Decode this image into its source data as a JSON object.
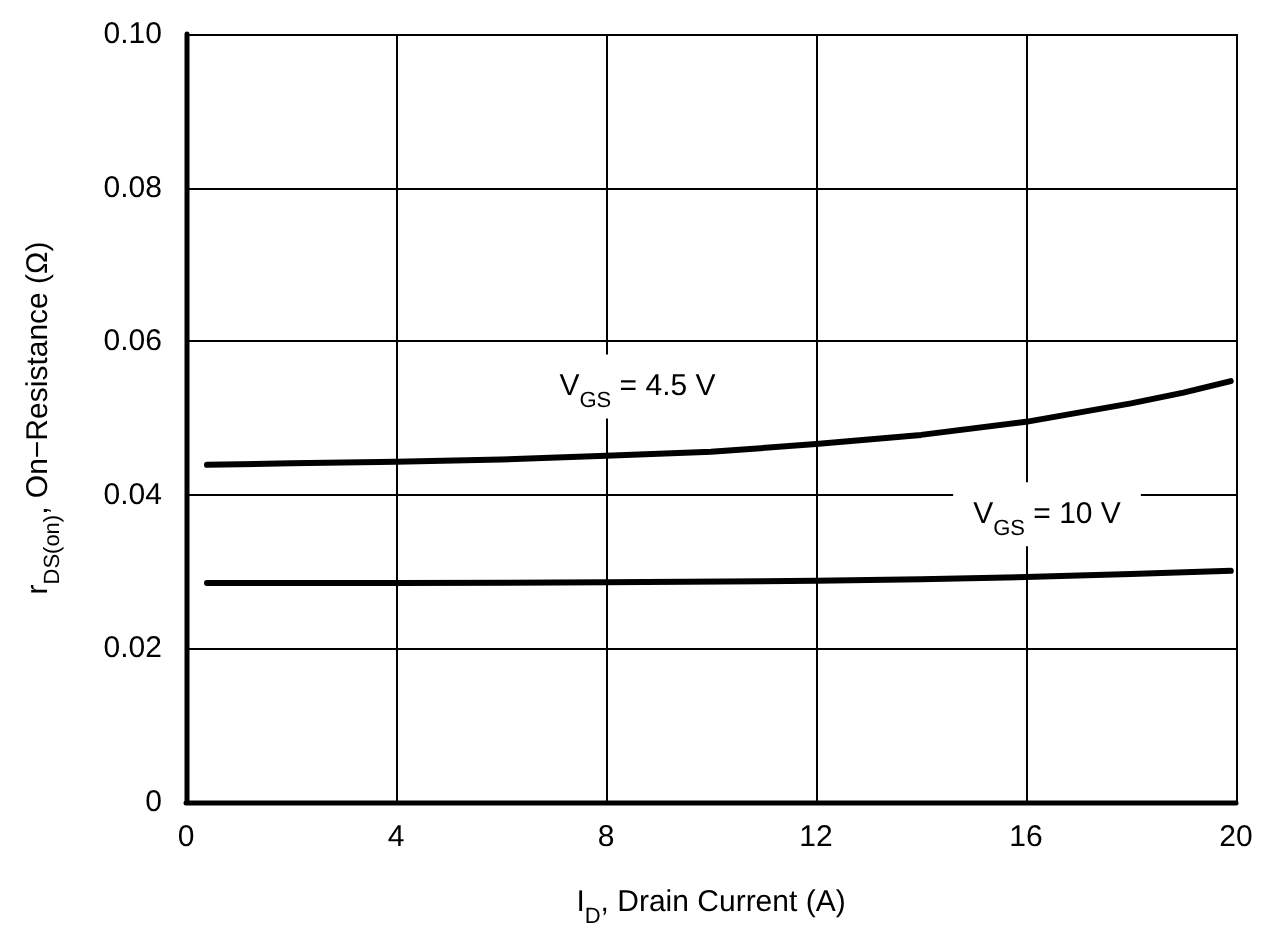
{
  "chart_data": {
    "type": "line",
    "xlabel": "I$_{D}$, Drain Current (A)",
    "ylabel": "r$_{DS(on)}$, On−Resistance (Ω)",
    "xlim": [
      0,
      20
    ],
    "xticks": [
      0,
      4,
      8,
      12,
      16,
      20
    ],
    "ylim": [
      0,
      0.1
    ],
    "yticks": [
      0,
      0.02,
      0.04,
      0.06,
      0.08,
      {
        "value": 0.1,
        "label": "0.10"
      }
    ],
    "grid": true,
    "line_style": "solid",
    "series": [
      {
        "name": "V$_{GS}$ = 4.5 V",
        "color": "#000000",
        "x": [
          0.4,
          2,
          4,
          6,
          8,
          10,
          12,
          14,
          16,
          17,
          18,
          19,
          19.9
        ],
        "values": [
          0.0439,
          0.0441,
          0.0443,
          0.0446,
          0.0451,
          0.0456,
          0.0466,
          0.0478,
          0.0495,
          0.0507,
          0.0519,
          0.0533,
          0.0548
        ]
      },
      {
        "name": "V$_{GS}$ = 10 V",
        "color": "#000000",
        "x": [
          0.4,
          4,
          8,
          12,
          14,
          16,
          18,
          19.9
        ],
        "values": [
          0.0285,
          0.0285,
          0.0286,
          0.0288,
          0.029,
          0.0293,
          0.0297,
          0.0301
        ]
      }
    ]
  }
}
